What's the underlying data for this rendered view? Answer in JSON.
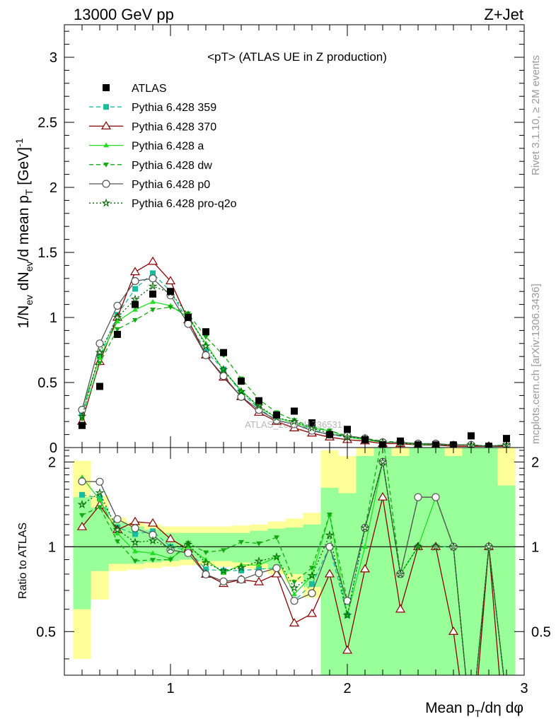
{
  "header": {
    "left": "13000 GeV pp",
    "right": "Z+Jet"
  },
  "side": {
    "rivet": "Rivet 3.1.10, ≥ 2M events",
    "mcplots": "mcplots.cern.ch [arXiv:1306.3436]"
  },
  "chart_data": {
    "type": "line",
    "title": "<pT> (ATLAS UE in Z production)",
    "watermark": "ATLAS_2019_I1736531",
    "xlabel": "Mean p_T/dη dφ",
    "ylabel": "1/N_ev dN_ev/d mean p_T [GeV]^-1",
    "ratio_ylabel": "Ratio to ATLAS",
    "xlim": [
      0.4,
      3.0
    ],
    "ylim": [
      0,
      3.25
    ],
    "ratio_ylim": [
      0.35,
      2.25
    ],
    "x_ticks": [
      "1",
      "2",
      "3"
    ],
    "y_ticks": [
      "0",
      "0.5",
      "1",
      "1.5",
      "2",
      "2.5",
      "3"
    ],
    "ratio_y_ticks": [
      "0.5",
      "1",
      "2"
    ],
    "x": [
      0.5,
      0.6,
      0.7,
      0.8,
      0.9,
      1.0,
      1.1,
      1.2,
      1.3,
      1.4,
      1.5,
      1.6,
      1.7,
      1.8,
      1.9,
      2.0,
      2.1,
      2.2,
      2.3,
      2.4,
      2.5,
      2.6,
      2.7,
      2.8,
      2.9
    ],
    "data": {
      "name": "ATLAS",
      "values": [
        0.17,
        0.47,
        0.87,
        1.1,
        1.18,
        1.2,
        1.0,
        0.89,
        0.73,
        0.51,
        0.36,
        0.25,
        0.28,
        0.19,
        0.1,
        0.14,
        0.06,
        0.02,
        0.05,
        0.02,
        0.02,
        0.02,
        0.09,
        0.01,
        0.07
      ]
    },
    "series": [
      {
        "name": "Pythia 6.428 359",
        "color": "#1abc9c",
        "marker": "square",
        "dash": "6,4",
        "values": [
          0.26,
          0.7,
          1.02,
          1.22,
          1.34,
          1.2,
          0.97,
          0.74,
          0.6,
          0.42,
          0.3,
          0.21,
          0.18,
          0.14,
          0.1,
          0.08,
          0.07,
          0.04,
          0.04,
          0.02,
          0.02,
          0.02,
          0.02,
          0.01,
          0.02
        ]
      },
      {
        "name": "Pythia 6.428 370",
        "color": "#8b0000",
        "marker": "triangle-open",
        "dash": "",
        "values": [
          0.2,
          0.66,
          1.0,
          1.35,
          1.43,
          1.28,
          0.98,
          0.71,
          0.54,
          0.39,
          0.27,
          0.2,
          0.15,
          0.11,
          0.08,
          0.06,
          0.05,
          0.03,
          0.03,
          0.02,
          0.02,
          0.01,
          0.01,
          0.01,
          0.01
        ]
      },
      {
        "name": "Pythia 6.428 a",
        "color": "#22dd22",
        "marker": "triangle-up",
        "dash": "",
        "values": [
          0.3,
          0.69,
          0.97,
          1.06,
          1.12,
          1.09,
          1.0,
          0.8,
          0.59,
          0.44,
          0.31,
          0.23,
          0.19,
          0.15,
          0.13,
          0.08,
          0.06,
          0.04,
          0.04,
          0.02,
          0.03,
          0.02,
          0.02,
          0.01,
          0.02
        ]
      },
      {
        "name": "Pythia 6.428 dw",
        "color": "#11aa11",
        "marker": "triangle-down",
        "dash": "6,4",
        "values": [
          0.22,
          0.65,
          0.91,
          0.98,
          1.06,
          1.08,
          1.03,
          0.85,
          0.71,
          0.53,
          0.37,
          0.27,
          0.21,
          0.16,
          0.13,
          0.09,
          0.07,
          0.05,
          0.04,
          0.03,
          0.03,
          0.02,
          0.02,
          0.01,
          0.02
        ]
      },
      {
        "name": "Pythia 6.428 p0",
        "color": "#555555",
        "marker": "circle-open",
        "dash": "",
        "values": [
          0.29,
          0.8,
          1.09,
          1.28,
          1.3,
          1.17,
          0.95,
          0.71,
          0.55,
          0.39,
          0.29,
          0.21,
          0.18,
          0.13,
          0.1,
          0.09,
          0.07,
          0.04,
          0.04,
          0.03,
          0.03,
          0.02,
          0.02,
          0.01,
          0.02
        ]
      },
      {
        "name": "Pythia 6.428 pro-q2o",
        "color": "#006400",
        "marker": "star-open",
        "dash": "2,3",
        "values": [
          0.24,
          0.73,
          1.0,
          1.14,
          1.24,
          1.19,
          1.02,
          0.78,
          0.6,
          0.43,
          0.32,
          0.23,
          0.2,
          0.15,
          0.11,
          0.08,
          0.07,
          0.04,
          0.04,
          0.02,
          0.02,
          0.02,
          0.02,
          0.01,
          0.02
        ]
      }
    ],
    "ratio": {
      "band_inner": [
        [
          0.6,
          1.5
        ],
        [
          0.82,
          1.38
        ],
        [
          0.87,
          1.22
        ],
        [
          0.87,
          1.18
        ],
        [
          0.88,
          1.15
        ],
        [
          0.89,
          1.12
        ],
        [
          0.9,
          1.12
        ],
        [
          0.89,
          1.12
        ],
        [
          0.89,
          1.12
        ],
        [
          0.88,
          1.12
        ],
        [
          0.87,
          1.14
        ],
        [
          0.84,
          1.16
        ],
        [
          0.8,
          1.17
        ],
        [
          0.72,
          1.2
        ],
        [
          0.35,
          1.62
        ],
        [
          0.35,
          1.55
        ],
        [
          0.35,
          2.1
        ],
        [
          0.35,
          2.25
        ],
        [
          0.35,
          2.1
        ],
        [
          0.35,
          2.25
        ],
        [
          0.35,
          2.25
        ],
        [
          0.35,
          2.1
        ],
        [
          0.35,
          2.25
        ],
        [
          0.35,
          2.25
        ],
        [
          0.35,
          1.65
        ]
      ],
      "band_outer": [
        [
          0.4,
          2.02
        ],
        [
          0.65,
          1.52
        ],
        [
          0.82,
          1.27
        ],
        [
          0.83,
          1.22
        ],
        [
          0.84,
          1.2
        ],
        [
          0.85,
          1.18
        ],
        [
          0.86,
          1.18
        ],
        [
          0.86,
          1.18
        ],
        [
          0.85,
          1.18
        ],
        [
          0.84,
          1.19
        ],
        [
          0.83,
          1.2
        ],
        [
          0.8,
          1.23
        ],
        [
          0.75,
          1.26
        ],
        [
          0.66,
          1.32
        ],
        [
          0.35,
          2.2
        ],
        [
          0.35,
          2.1
        ],
        [
          0.35,
          2.25
        ],
        [
          0.35,
          2.25
        ],
        [
          0.35,
          2.25
        ],
        [
          0.35,
          2.25
        ],
        [
          0.35,
          2.25
        ],
        [
          0.35,
          2.25
        ],
        [
          0.35,
          2.25
        ],
        [
          0.35,
          2.25
        ],
        [
          0.35,
          2.25
        ]
      ]
    },
    "legend_position": "top-left"
  }
}
